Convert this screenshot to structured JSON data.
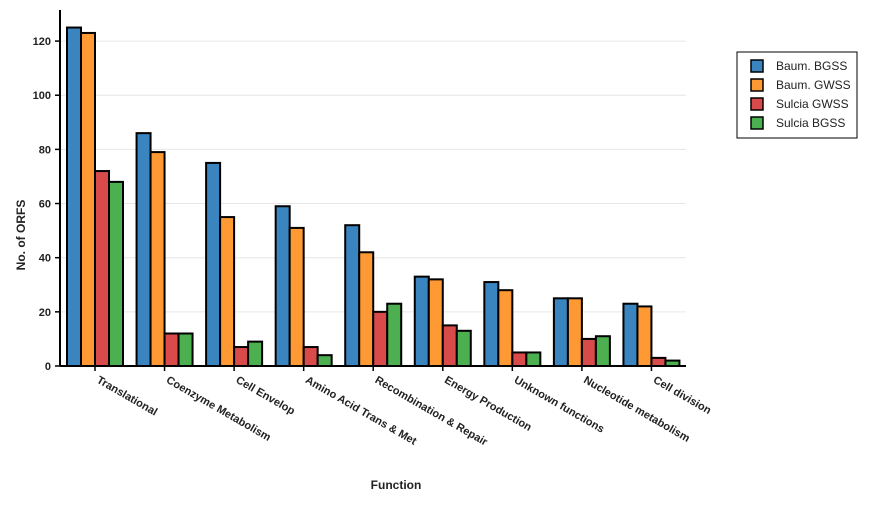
{
  "chart_data": {
    "type": "bar",
    "title": "",
    "xlabel": "Function",
    "ylabel": "No. of ORFS",
    "ylim": [
      0,
      130
    ],
    "yticks": [
      0,
      20,
      40,
      60,
      80,
      100,
      120
    ],
    "grid": true,
    "legend_position": "top-right",
    "categories": [
      "Translational",
      "Coenzyme Metabolism",
      "Cell Envelop",
      "Amino Acid Trans & Met",
      "Recombination & Repair",
      "Energy Production",
      "Unknown functions",
      "Nucleotide metabolism",
      "Cell division"
    ],
    "series": [
      {
        "name": "Baum. BGSS",
        "color": "#3a85c0",
        "values": [
          125,
          86,
          75,
          59,
          52,
          33,
          31,
          25,
          23
        ]
      },
      {
        "name": "Baum. GWSS",
        "color": "#ff9933",
        "values": [
          123,
          79,
          55,
          51,
          42,
          32,
          28,
          25,
          22
        ]
      },
      {
        "name": "Sulcia GWSS",
        "color": "#d94a4a",
        "values": [
          72,
          12,
          7,
          7,
          20,
          15,
          5,
          10,
          3
        ]
      },
      {
        "name": "Sulcia BGSS",
        "color": "#4caf50",
        "values": [
          68,
          12,
          9,
          4,
          23,
          13,
          5,
          11,
          2
        ]
      }
    ]
  }
}
